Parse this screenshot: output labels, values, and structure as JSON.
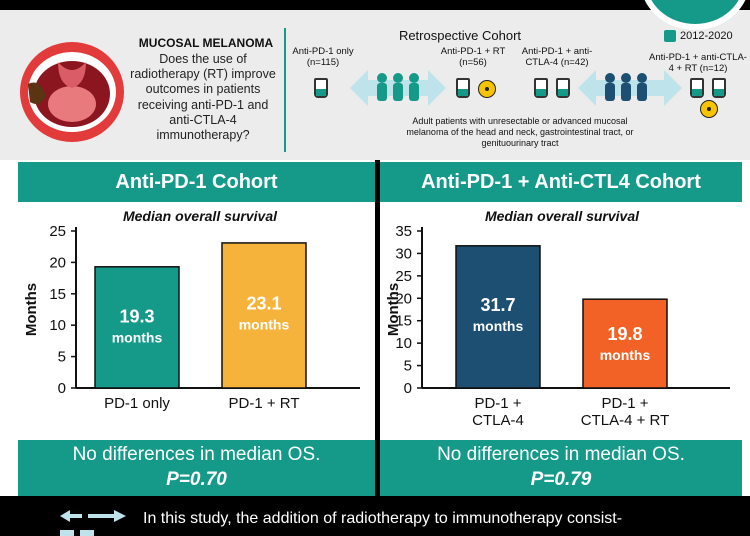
{
  "header": {
    "topic_title": "MUCOSAL MELANOMA",
    "question": "Does the use of radiotherapy (RT) improve outcomes in patients receiving anti-PD-1 and anti-CTLA-4 immunotherapy?",
    "retro_title": "Retrospective Cohort",
    "date_range": "2012-2020",
    "arms": [
      {
        "label": "Anti-PD-1 only (n=115)"
      },
      {
        "label": "Anti-PD-1 + RT (n=56)"
      },
      {
        "label": "Anti-PD-1 + anti-CTLA-4 (n=42)"
      },
      {
        "label": "Anti-PD-1 + anti-CTLA-4 + RT (n=12)"
      }
    ],
    "cohort_note": "Adult patients with unresectable or advanced mucosal melanoma of the head and neck, gastrointestinal tract, or genituourinary tract"
  },
  "colors": {
    "teal": "#159a8a",
    "orange_light": "#f6b33b",
    "navy": "#1d4f73",
    "orange_red": "#f26126"
  },
  "chart_data": [
    {
      "type": "bar",
      "title": "Anti-PD-1 Cohort",
      "subtitle": "Median overall survival",
      "ylabel": "Months",
      "ylim": [
        0,
        25
      ],
      "yticks": [
        0,
        5,
        10,
        15,
        20,
        25
      ],
      "categories": [
        [
          "PD-1 only"
        ],
        [
          "PD-1 + RT"
        ]
      ],
      "values": [
        19.3,
        23.1
      ],
      "data_labels": [
        "19.3",
        "23.1"
      ],
      "unit_label": "months",
      "bar_colors": [
        "#159a8a",
        "#f6b33b"
      ],
      "footer_text": "No differences in median OS.",
      "p_value": "P=0.70"
    },
    {
      "type": "bar",
      "title": "Anti-PD-1 + Anti-CTL4 Cohort",
      "subtitle": "Median overall survival",
      "ylabel": "Months",
      "ylim": [
        0,
        35
      ],
      "yticks": [
        0,
        5,
        10,
        15,
        20,
        25,
        30,
        35
      ],
      "categories": [
        [
          "PD-1 +",
          "CTLA-4"
        ],
        [
          "PD-1 +",
          "CTLA-4 + RT"
        ]
      ],
      "values": [
        31.7,
        19.8
      ],
      "data_labels": [
        "31.7",
        "19.8"
      ],
      "unit_label": "months",
      "bar_colors": [
        "#1d4f73",
        "#f26126"
      ],
      "footer_text": "No differences in median OS.",
      "p_value": "P=0.79"
    }
  ],
  "conclusion": "In this study, the addition of radiotherapy to immunotherapy consist-"
}
